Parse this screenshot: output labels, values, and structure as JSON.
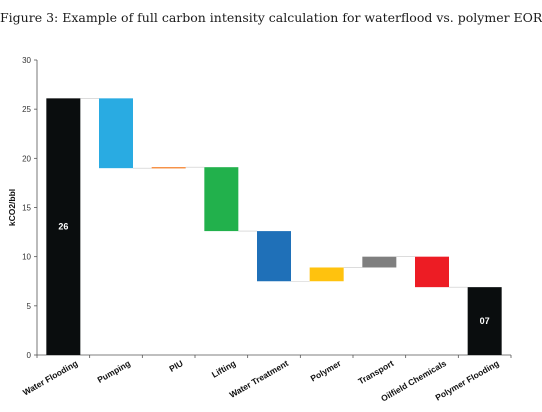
{
  "figure_title": "Figure 3: Example of full carbon intensity calculation for waterflood vs. polymer EOR",
  "chart_data": {
    "type": "bar",
    "subtype": "waterfall",
    "title": "",
    "xlabel": "",
    "ylabel": "kCO2/bbl",
    "ylim": [
      0,
      30
    ],
    "yticks": [
      0,
      5,
      10,
      15,
      20,
      25,
      30
    ],
    "grid": false,
    "legend": "none",
    "categories": [
      "Water Flooding",
      "Pumping",
      "PIU",
      "Lifting",
      "Water Treatment",
      "Polymer",
      "Transport",
      "Oilfield Chemicals",
      "Polymer Flooding"
    ],
    "bars": [
      {
        "category": "Water Flooding",
        "low": 0,
        "high": 26.1,
        "color": "#0a0d0e",
        "label": "26"
      },
      {
        "category": "Pumping",
        "low": 19.0,
        "high": 26.1,
        "color": "#29abe2",
        "label": ""
      },
      {
        "category": "PIU",
        "low": 19.0,
        "high": 19.1,
        "color": "#f47920",
        "label": ""
      },
      {
        "category": "Lifting",
        "low": 12.6,
        "high": 19.1,
        "color": "#22b14c",
        "label": ""
      },
      {
        "category": "Water Treatment",
        "low": 7.5,
        "high": 12.6,
        "color": "#1f70b8",
        "label": ""
      },
      {
        "category": "Polymer",
        "low": 7.5,
        "high": 8.9,
        "color": "#ffc20e",
        "label": ""
      },
      {
        "category": "Transport",
        "low": 8.9,
        "high": 10.0,
        "color": "#7f7f7f",
        "label": ""
      },
      {
        "category": "Oilfield Chemicals",
        "low": 6.9,
        "high": 10.0,
        "color": "#ed1c24",
        "label": ""
      },
      {
        "category": "Polymer Flooding",
        "low": 0,
        "high": 6.9,
        "color": "#0a0d0e",
        "label": "07"
      }
    ]
  }
}
